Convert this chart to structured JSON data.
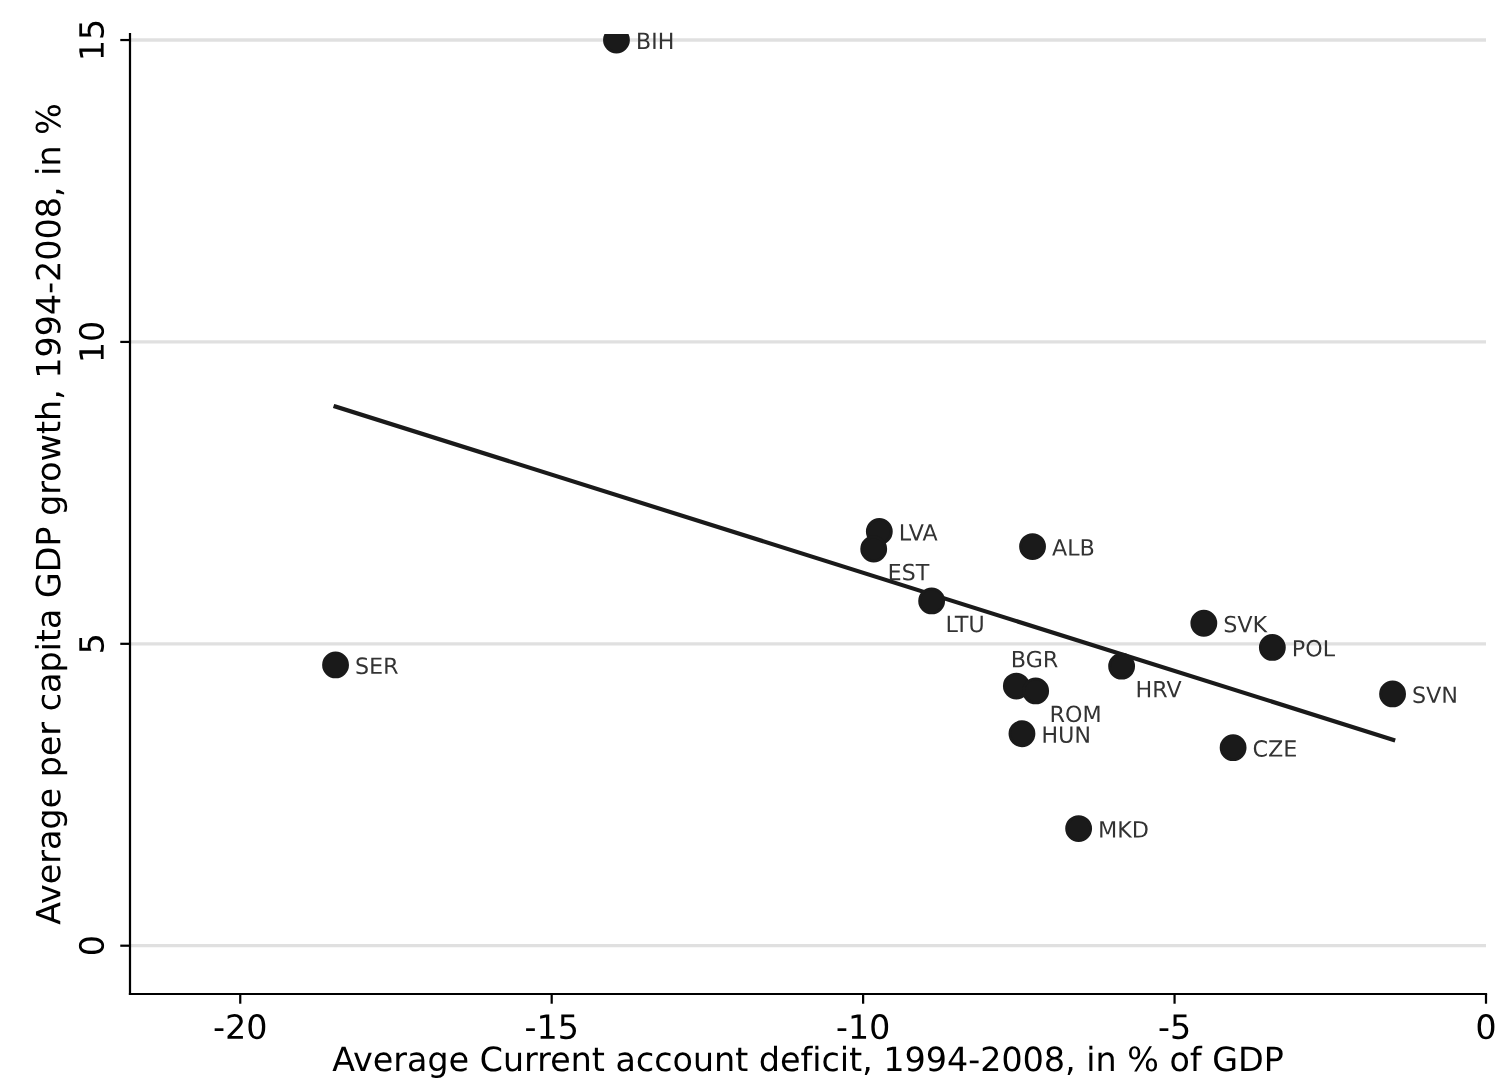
{
  "chart_data": {
    "type": "scatter",
    "xlabel": "Average Current account deficit, 1994-2008, in % of GDP",
    "ylabel": "Average per capita GDP growth, 1994-2008, in %",
    "xlim": [
      -21.77,
      0
    ],
    "ylim": [
      -0.8,
      15.1
    ],
    "xticks": [
      -20,
      -15,
      -10,
      -5,
      0
    ],
    "yticks": [
      0,
      5,
      10,
      15
    ],
    "grid": "y",
    "marker": "circle",
    "legend": false,
    "series": [
      {
        "color": "#1a1a1a",
        "x": [
          -13.96,
          -18.47,
          -9.74,
          -9.83,
          -7.28,
          -8.9,
          -4.53,
          -3.43,
          -7.54,
          -7.23,
          -5.85,
          -1.5,
          -7.45,
          -4.06,
          -6.54
        ],
        "values": [
          15.0,
          4.65,
          6.86,
          6.57,
          6.61,
          5.71,
          5.34,
          4.94,
          4.3,
          4.22,
          4.63,
          4.17,
          3.51,
          3.28,
          1.94
        ]
      },
      {
        "type": "line",
        "color": "#1a1a1a",
        "x": [
          -18.47,
          -1.49
        ],
        "values": [
          8.93,
          3.41
        ],
        "marker": "none"
      }
    ],
    "annotations": [
      {
        "text": "BIH",
        "x": -13.96,
        "y": 15.0
      },
      {
        "text": "SER",
        "x": -18.47,
        "y": 4.65
      },
      {
        "text": "LVA",
        "x": -9.74,
        "y": 6.86
      },
      {
        "text": "EST",
        "x": -9.83,
        "y": 6.57
      },
      {
        "text": "ALB",
        "x": -7.28,
        "y": 6.61
      },
      {
        "text": "LTU",
        "x": -8.9,
        "y": 5.71
      },
      {
        "text": "SVK",
        "x": -4.53,
        "y": 5.34
      },
      {
        "text": "POL",
        "x": -3.43,
        "y": 4.94
      },
      {
        "text": "BGR",
        "x": -7.54,
        "y": 4.3
      },
      {
        "text": "ROM",
        "x": -7.23,
        "y": 4.22
      },
      {
        "text": "HRV",
        "x": -5.85,
        "y": 4.63
      },
      {
        "text": "SVN",
        "x": -1.5,
        "y": 4.17
      },
      {
        "text": "HUN",
        "x": -7.45,
        "y": 3.51
      },
      {
        "text": "CZE",
        "x": -4.06,
        "y": 3.28
      },
      {
        "text": "MKD",
        "x": -6.54,
        "y": 1.94
      }
    ]
  }
}
